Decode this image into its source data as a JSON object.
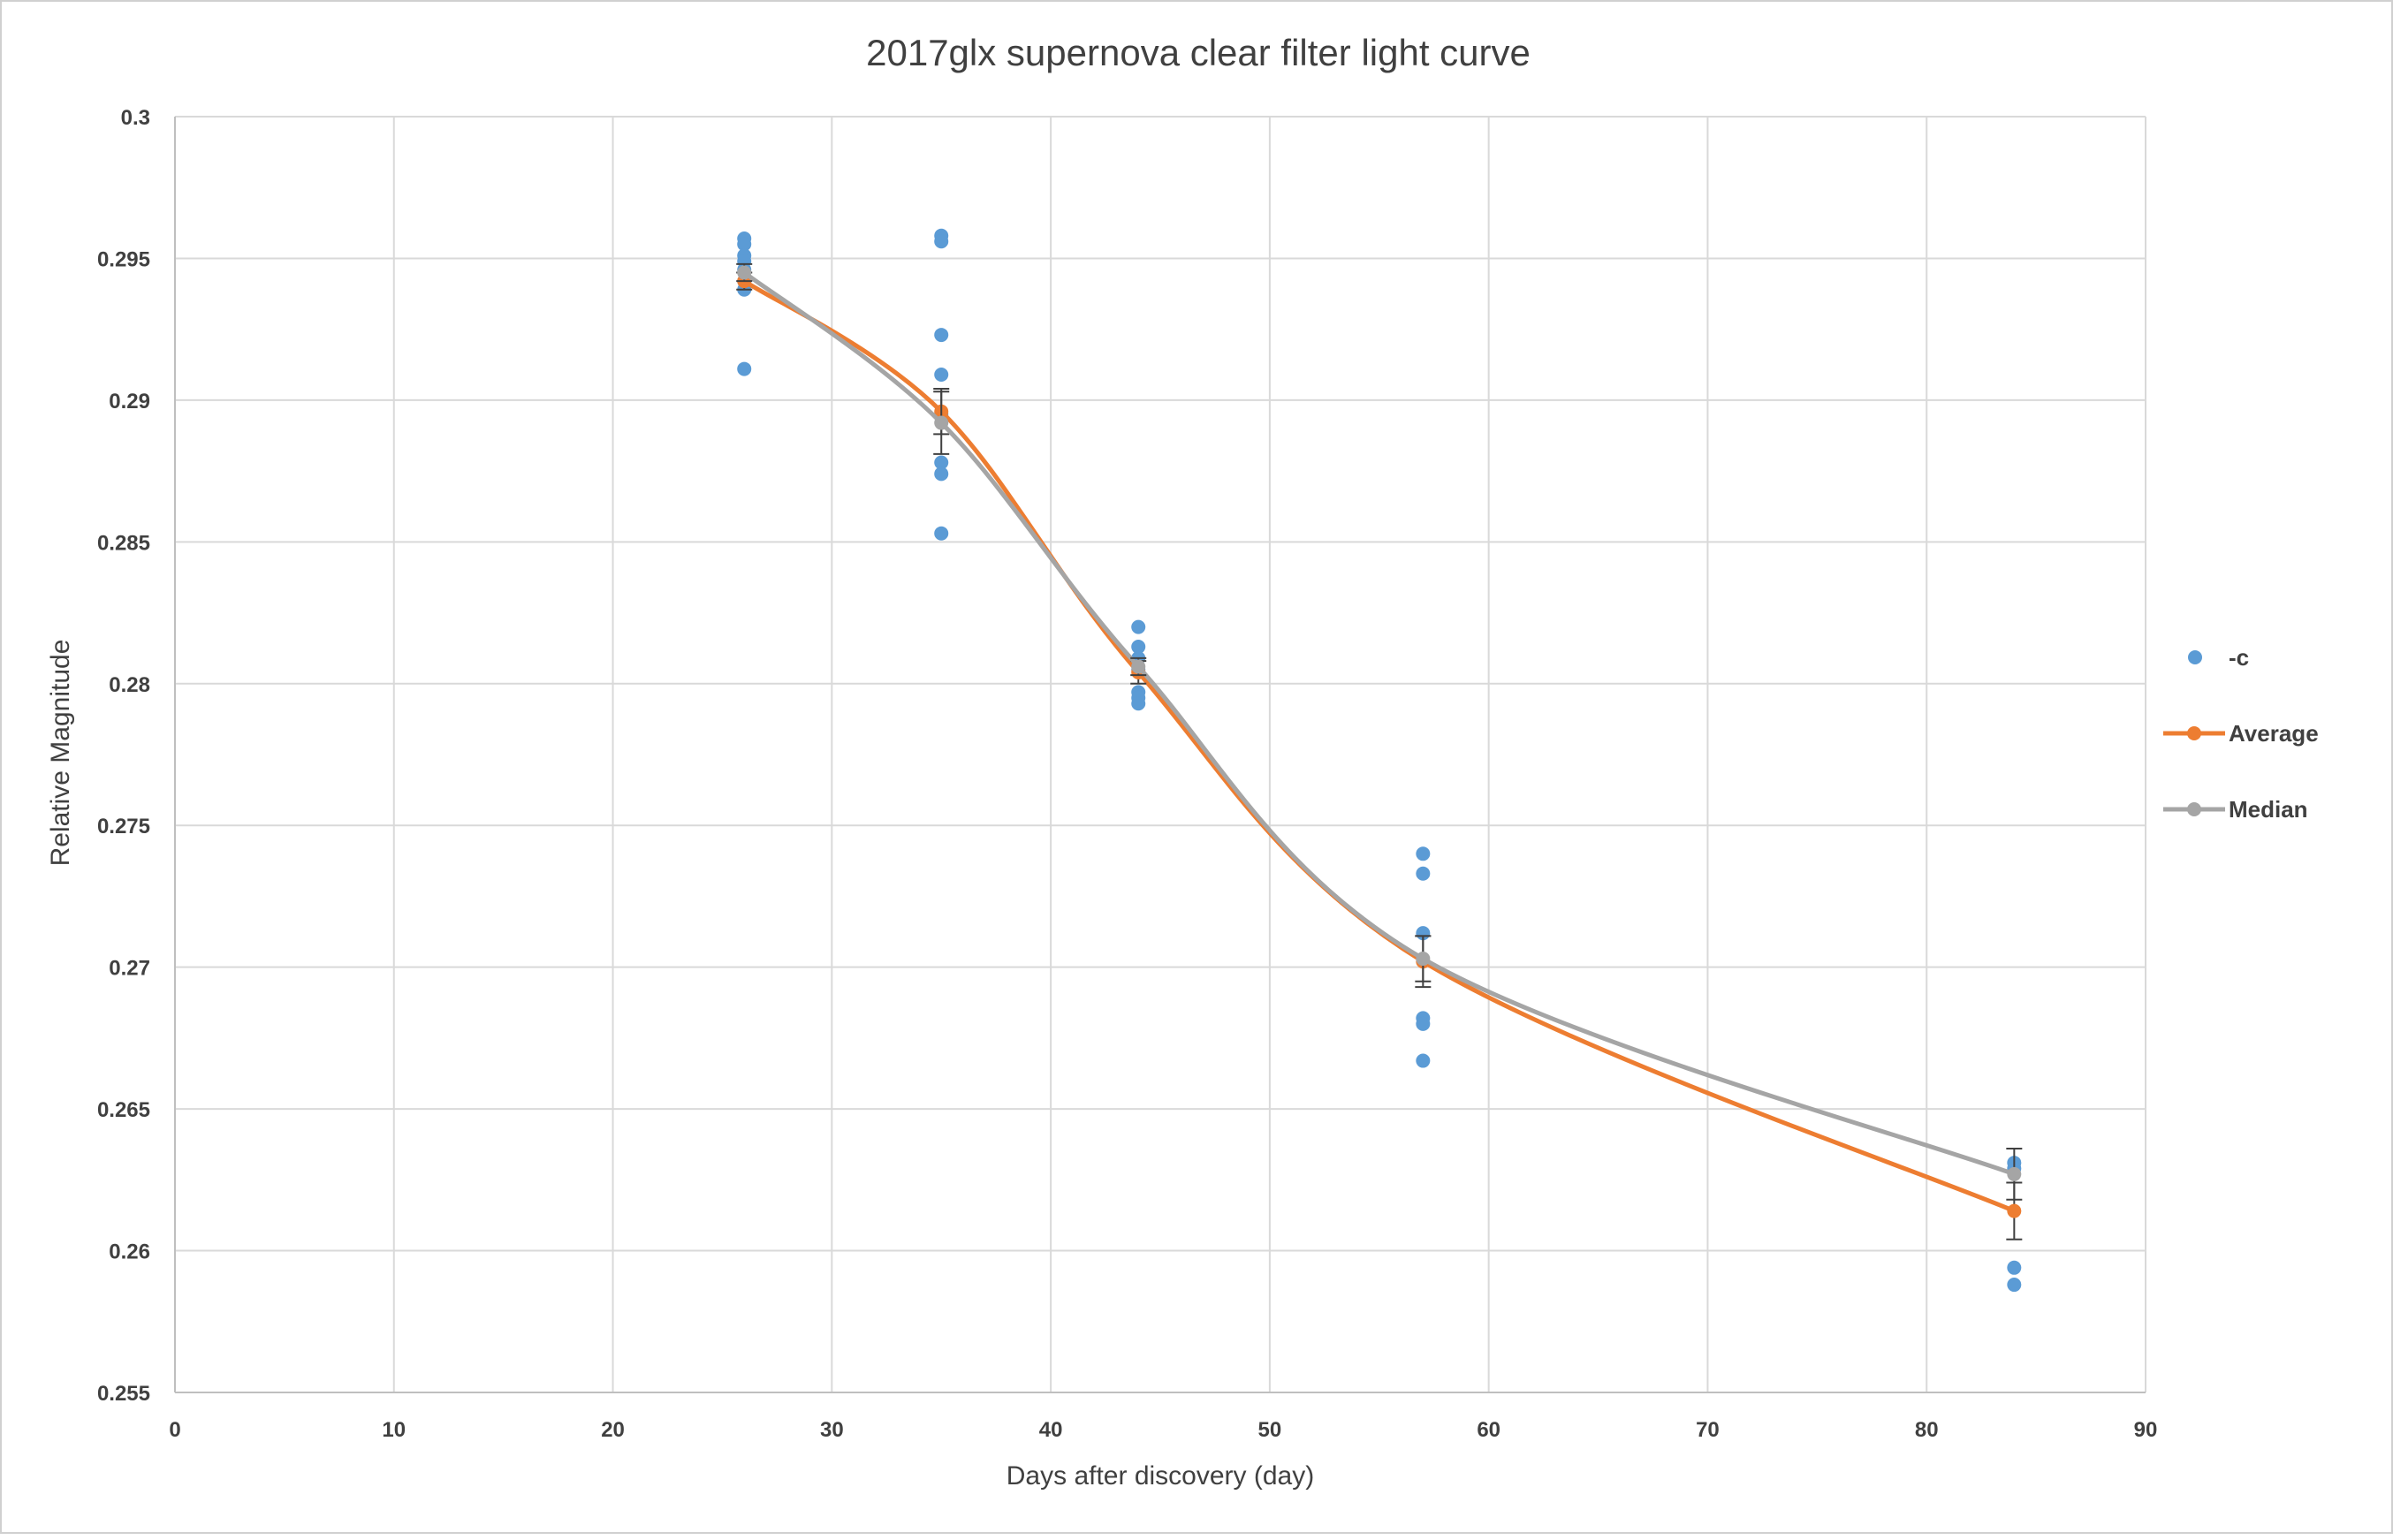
{
  "chart_data": {
    "type": "scatter",
    "title": "2017glx supernova  clear filter light curve",
    "xlabel": "Days after discovery (day)",
    "ylabel": "Relative Magnitude",
    "xlim": [
      0,
      90
    ],
    "ylim": [
      0.255,
      0.3
    ],
    "x_ticks": [
      0,
      10,
      20,
      30,
      40,
      50,
      60,
      70,
      80,
      90
    ],
    "x_tick_labels": [
      "0",
      "10",
      "20",
      "30",
      "40",
      "50",
      "60",
      "70",
      "80",
      "90"
    ],
    "y_ticks": [
      0.3,
      0.295,
      0.29,
      0.285,
      0.28,
      0.275,
      0.27,
      0.265,
      0.26,
      0.255
    ],
    "y_tick_labels": [
      "0.3",
      "0.295",
      "0.29",
      "0.285",
      "0.28",
      "0.275",
      "0.27",
      "0.265",
      "0.26",
      "0.255"
    ],
    "grid": true,
    "legend_position": "right",
    "series": [
      {
        "name": "-c",
        "kind": "scatter",
        "color": "#5b9bd5",
        "x": [
          26,
          26,
          26,
          26,
          26,
          26,
          26,
          26,
          35,
          35,
          35,
          35,
          35,
          35,
          35,
          35,
          44,
          44,
          44,
          44,
          44,
          44,
          44,
          57,
          57,
          57,
          57,
          57,
          57,
          84,
          84,
          84,
          84
        ],
        "y": [
          0.2957,
          0.2955,
          0.2951,
          0.2949,
          0.2946,
          0.2942,
          0.2939,
          0.2911,
          0.2958,
          0.2956,
          0.2923,
          0.2909,
          0.2878,
          0.2874,
          0.2853,
          0.2895,
          0.282,
          0.2813,
          0.2809,
          0.2805,
          0.2797,
          0.2795,
          0.2793,
          0.274,
          0.2733,
          0.2712,
          0.2682,
          0.268,
          0.2667,
          0.2631,
          0.2629,
          0.2594,
          0.2588
        ]
      },
      {
        "name": "Average",
        "kind": "smooth-line",
        "color": "#ed7d31",
        "x": [
          26,
          35,
          44,
          57,
          84
        ],
        "y": [
          0.2942,
          0.2896,
          0.2804,
          0.2702,
          0.2614
        ],
        "error": [
          0.0003,
          0.0008,
          0.0004,
          0.0009,
          0.001
        ]
      },
      {
        "name": "Median",
        "kind": "smooth-line",
        "color": "#a5a5a5",
        "x": [
          26,
          35,
          44,
          57,
          84
        ],
        "y": [
          0.2945,
          0.2892,
          0.2806,
          0.2703,
          0.2627
        ],
        "error": [
          0.0003,
          0.0011,
          0.0003,
          0.0008,
          0.0009
        ]
      }
    ]
  }
}
